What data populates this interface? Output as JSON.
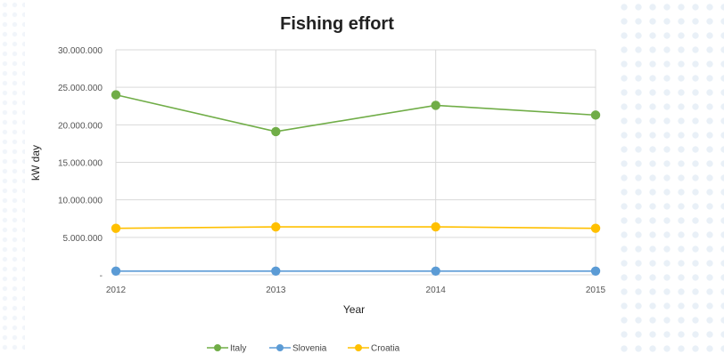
{
  "chart_data": {
    "type": "line",
    "title": "Fishing effort",
    "xlabel": "Year",
    "ylabel": "kW day",
    "categories": [
      "2012",
      "2013",
      "2014",
      "2015"
    ],
    "ylim": [
      0,
      30000000
    ],
    "y_ticks": [
      0,
      5000000,
      10000000,
      15000000,
      20000000,
      25000000,
      30000000
    ],
    "y_tick_labels": [
      "-",
      "5.000.000",
      "10.000.000",
      "15.000.000",
      "20.000.000",
      "25.000.000",
      "30.000.000"
    ],
    "grid": true,
    "legend_position": "bottom",
    "series": [
      {
        "name": "Italy",
        "color": "#70ad47",
        "values": [
          24000000,
          19100000,
          22600000,
          21300000
        ]
      },
      {
        "name": "Slovenia",
        "color": "#5b9bd5",
        "values": [
          500000,
          500000,
          500000,
          500000
        ]
      },
      {
        "name": "Croatia",
        "color": "#ffc000",
        "values": [
          6200000,
          6400000,
          6400000,
          6200000
        ]
      }
    ]
  }
}
